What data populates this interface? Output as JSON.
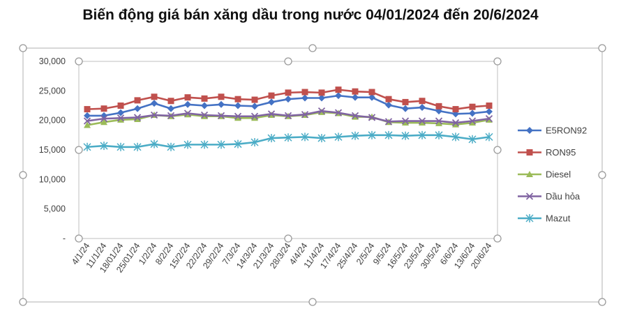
{
  "title": "Biến động giá bán xăng dầu trong nước 04/01/2024 đến 20/6/2024",
  "colors": {
    "E5RON92": "#4472C4",
    "RON95": "#C0504D",
    "Diesel": "#9BBB59",
    "Dau_hoa": "#8064A2",
    "Mazut": "#4BACC6"
  },
  "chart_data": {
    "type": "line",
    "title": "Biến động giá bán xăng dầu trong nước 04/01/2024 đến 20/6/2024",
    "xlabel": "",
    "ylabel": "",
    "ylim": [
      0,
      30000
    ],
    "y_ticks": [
      0,
      5000,
      10000,
      15000,
      20000,
      25000,
      30000
    ],
    "y_tick_labels": [
      "-",
      "5,000",
      "10,000",
      "15,000",
      "20,000",
      "25,000",
      "30,000"
    ],
    "grid": false,
    "legend": "right",
    "categories": [
      "4/1/24",
      "11/1/24",
      "18/01/24",
      "25/01/24",
      "1/2/24",
      "8/2/24",
      "15/2/24",
      "22/2/24",
      "29/2/24",
      "7/3/24",
      "14/3/24",
      "21/3/24",
      "28/3/24",
      "4/4/24",
      "11/4/24",
      "17/4/24",
      "25/4/24",
      "2/5/24",
      "9/5/24",
      "16/5/24",
      "23/5/24",
      "30/5/24",
      "6/6/24",
      "13/6/24",
      "20/6/24"
    ],
    "series": [
      {
        "name": "E5RON92",
        "marker": "diamond",
        "values": [
          20800,
          20800,
          21300,
          22000,
          22900,
          22000,
          22700,
          22500,
          22700,
          22500,
          22400,
          23100,
          23600,
          23800,
          23800,
          24200,
          23900,
          23900,
          22600,
          22000,
          22200,
          21600,
          21100,
          21200,
          21500
        ]
      },
      {
        "name": "RON95",
        "marker": "square",
        "values": [
          21900,
          22000,
          22500,
          23400,
          24000,
          23300,
          23900,
          23700,
          24000,
          23600,
          23500,
          24200,
          24700,
          24800,
          24700,
          25200,
          24900,
          24800,
          23600,
          23100,
          23300,
          22400,
          21900,
          22300,
          22500
        ]
      },
      {
        "name": "Diesel",
        "marker": "triangle",
        "values": [
          19200,
          19700,
          20100,
          20200,
          20900,
          20700,
          21000,
          20700,
          20700,
          20400,
          20400,
          20900,
          20700,
          20900,
          21400,
          21200,
          20600,
          20600,
          19700,
          19600,
          19600,
          19500,
          19300,
          19600,
          20100
        ]
      },
      {
        "name": "Dầu hỏa",
        "marker": "x",
        "values": [
          19900,
          20300,
          20400,
          20500,
          20900,
          20800,
          21200,
          20900,
          20800,
          20700,
          20700,
          21100,
          20800,
          21000,
          21600,
          21300,
          20800,
          20500,
          19800,
          19900,
          19900,
          19900,
          19600,
          19900,
          20300
        ]
      },
      {
        "name": "Mazut",
        "marker": "star",
        "values": [
          15500,
          15700,
          15500,
          15500,
          16000,
          15500,
          15900,
          15900,
          15900,
          16000,
          16300,
          17000,
          17100,
          17200,
          17000,
          17200,
          17400,
          17500,
          17500,
          17400,
          17500,
          17500,
          17200,
          16800,
          17200
        ]
      }
    ]
  }
}
